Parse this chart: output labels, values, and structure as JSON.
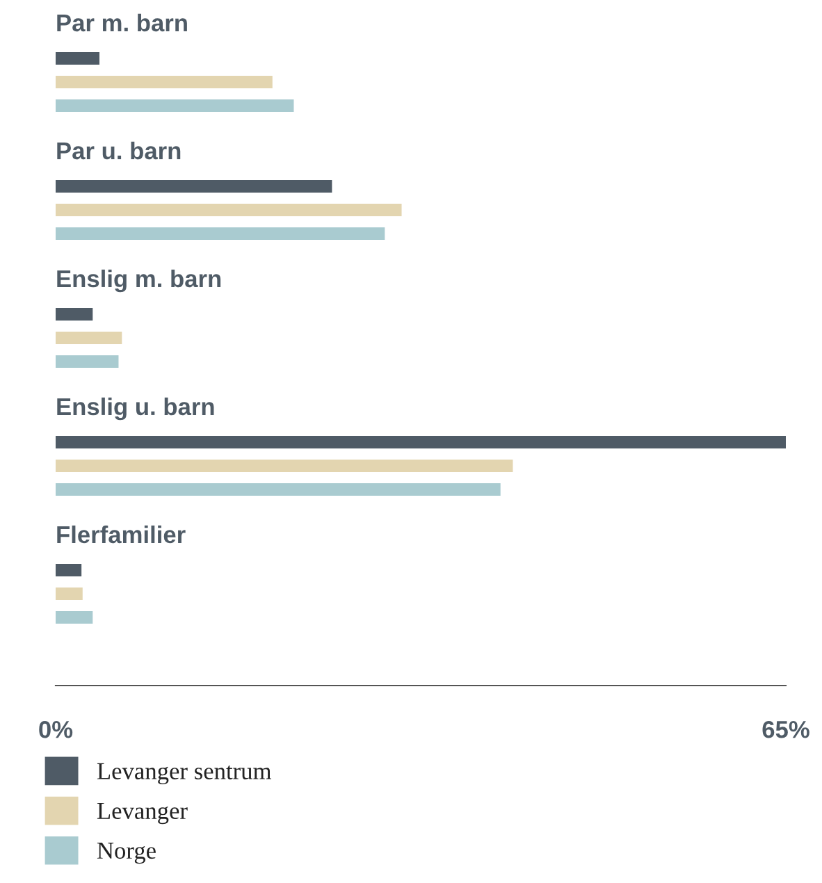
{
  "chart_data": {
    "type": "bar",
    "orientation": "horizontal",
    "categories": [
      "Par m. barn",
      "Par u. barn",
      "Enslig m. barn",
      "Enslig u. barn",
      "Flerfamilier"
    ],
    "series": [
      {
        "name": "Levanger sentrum",
        "color": "#4f5b66",
        "values": [
          3.9,
          24.6,
          3.3,
          65.0,
          2.3
        ]
      },
      {
        "name": "Levanger",
        "color": "#e3d5b0",
        "values": [
          19.3,
          30.8,
          5.9,
          40.7,
          2.4
        ]
      },
      {
        "name": "Norge",
        "color": "#a9cbd0",
        "values": [
          21.2,
          29.3,
          5.6,
          39.6,
          3.3
        ]
      }
    ],
    "xlim": [
      0,
      65
    ],
    "xticks": [
      {
        "value": 0,
        "label": "0%"
      },
      {
        "value": 65,
        "label": "65%"
      }
    ],
    "grid": false,
    "legend": "bottom"
  }
}
